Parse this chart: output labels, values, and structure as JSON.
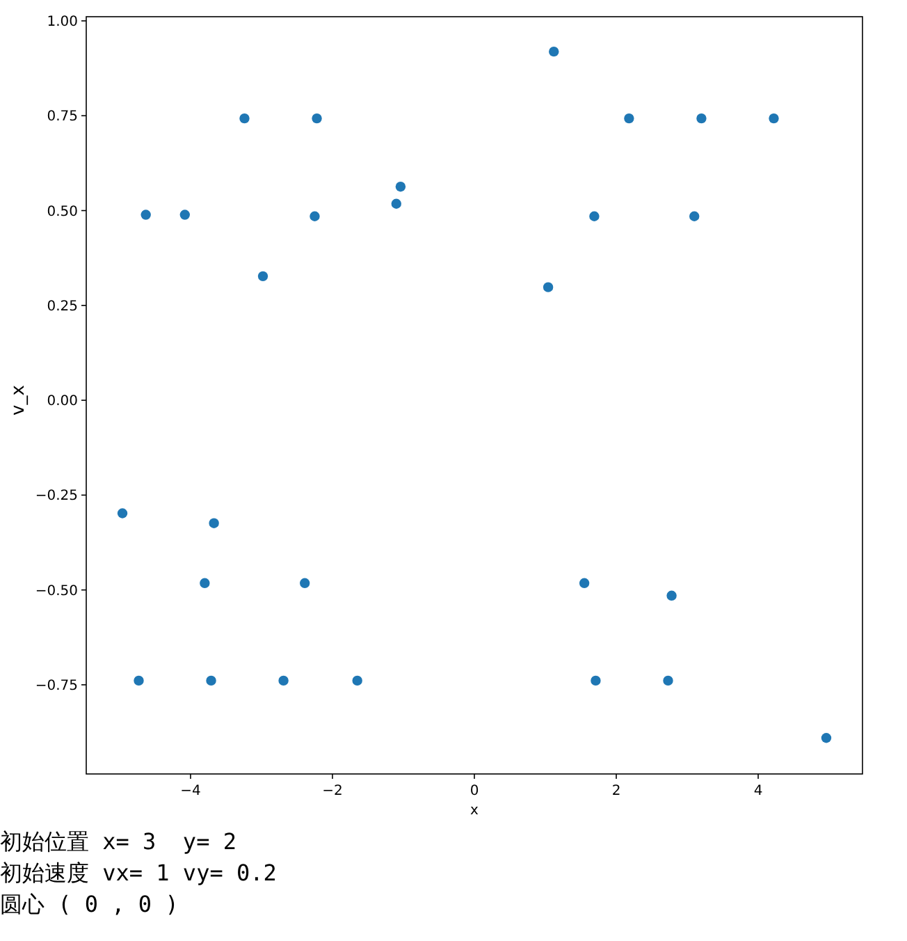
{
  "chart_data": {
    "type": "scatter",
    "xlabel": "x",
    "ylabel": "v_x",
    "xlim": [
      -5.47,
      5.47
    ],
    "ylim": [
      -0.985,
      1.011
    ],
    "xticks": [
      {
        "value": -4,
        "label": "−4"
      },
      {
        "value": -2,
        "label": "−2"
      },
      0,
      2,
      4
    ],
    "yticks": [
      {
        "value": -0.75,
        "label": "−0.75"
      },
      {
        "value": -0.5,
        "label": "−0.50"
      },
      {
        "value": -0.25,
        "label": "−0.25"
      },
      {
        "value": 0,
        "label": "0.00"
      },
      {
        "value": 0.25,
        "label": "0.25"
      },
      {
        "value": 0.5,
        "label": "0.50"
      },
      {
        "value": 0.75,
        "label": "0.75"
      },
      {
        "value": 1,
        "label": "1.00"
      }
    ],
    "marker": "circle",
    "grid": false,
    "series": [
      {
        "color": "#1f77b4",
        "x": [
          -4.96,
          -4.63,
          -4.73,
          -4.08,
          -3.8,
          -3.71,
          -3.67,
          -3.24,
          -2.98,
          -2.69,
          -2.39,
          -2.25,
          -2.22,
          -1.65,
          -1.1,
          -1.04,
          1.04,
          1.12,
          1.55,
          1.69,
          1.71,
          2.18,
          2.78,
          2.73,
          3.1,
          3.2,
          4.22,
          4.96
        ],
        "values": [
          -0.298,
          0.489,
          -0.739,
          0.489,
          -0.482,
          -0.739,
          -0.324,
          0.743,
          0.327,
          -0.739,
          -0.482,
          0.485,
          0.743,
          -0.739,
          0.518,
          0.563,
          0.298,
          0.919,
          -0.482,
          0.485,
          -0.739,
          0.743,
          -0.515,
          -0.739,
          0.485,
          0.743,
          0.743,
          -0.89
        ]
      }
    ],
    "annotations": [
      "初始位置 x= 3  y= 2",
      "初始速度 vx= 1 vy= 0.2",
      "圆心 ( 0 , 0 )"
    ]
  }
}
